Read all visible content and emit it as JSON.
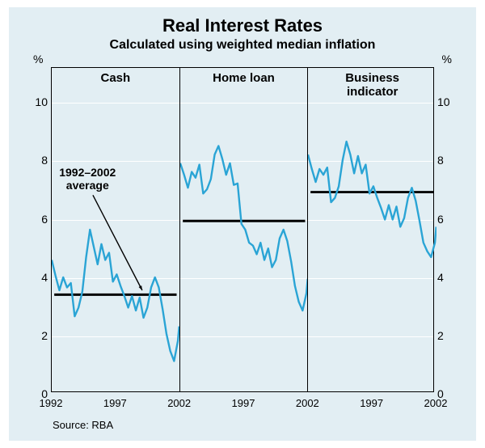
{
  "title": "Real Interest Rates",
  "subtitle": "Calculated using weighted median inflation",
  "source": "Source: RBA",
  "y_axis": {
    "unit": "%",
    "min": 0,
    "max": 11.2,
    "ticks": [
      0,
      2,
      4,
      6,
      8,
      10
    ]
  },
  "x_axis": {
    "start_year": 1992,
    "end_year": 2002
  },
  "colors": {
    "background": "#e2eef3",
    "grid": "#ffffff",
    "line": "#2aa4d5",
    "average": "#000000",
    "arrow": "#000000"
  },
  "line_width": 2.4,
  "average_line_width": 3,
  "panels": [
    {
      "title": "Cash",
      "average": 3.35,
      "x_ticks": [
        "1992",
        "1997",
        "2002"
      ],
      "annotation": {
        "text_lines": [
          "1992–2002",
          "average"
        ],
        "x_year": 1994.6,
        "y_val": 7.35,
        "arrow_to_year": 1999.1,
        "arrow_to_val": 3.5
      },
      "series": [
        [
          1992.0,
          4.55
        ],
        [
          1992.3,
          4.0
        ],
        [
          1992.6,
          3.5
        ],
        [
          1992.9,
          3.95
        ],
        [
          1993.2,
          3.6
        ],
        [
          1993.5,
          3.75
        ],
        [
          1993.8,
          2.6
        ],
        [
          1994.1,
          2.9
        ],
        [
          1994.4,
          3.45
        ],
        [
          1994.7,
          4.65
        ],
        [
          1995.0,
          5.6
        ],
        [
          1995.3,
          5.0
        ],
        [
          1995.6,
          4.4
        ],
        [
          1995.9,
          5.1
        ],
        [
          1996.2,
          4.55
        ],
        [
          1996.5,
          4.8
        ],
        [
          1996.8,
          3.8
        ],
        [
          1997.1,
          4.05
        ],
        [
          1997.4,
          3.65
        ],
        [
          1997.7,
          3.3
        ],
        [
          1998.0,
          2.9
        ],
        [
          1998.3,
          3.3
        ],
        [
          1998.6,
          2.8
        ],
        [
          1998.9,
          3.25
        ],
        [
          1999.2,
          2.55
        ],
        [
          1999.5,
          2.9
        ],
        [
          1999.8,
          3.6
        ],
        [
          2000.1,
          3.95
        ],
        [
          2000.4,
          3.6
        ],
        [
          2000.7,
          2.85
        ],
        [
          2001.0,
          2.0
        ],
        [
          2001.3,
          1.4
        ],
        [
          2001.6,
          1.05
        ],
        [
          2001.9,
          1.75
        ],
        [
          2002.0,
          2.25
        ]
      ]
    },
    {
      "title": "Home loan",
      "average": 5.9,
      "x_ticks": [
        "",
        "1997",
        "2002"
      ],
      "series": [
        [
          1992.0,
          7.9
        ],
        [
          1992.3,
          7.5
        ],
        [
          1992.6,
          7.05
        ],
        [
          1992.9,
          7.6
        ],
        [
          1993.2,
          7.4
        ],
        [
          1993.5,
          7.85
        ],
        [
          1993.8,
          6.85
        ],
        [
          1994.1,
          7.0
        ],
        [
          1994.4,
          7.35
        ],
        [
          1994.7,
          8.2
        ],
        [
          1995.0,
          8.5
        ],
        [
          1995.3,
          8.05
        ],
        [
          1995.6,
          7.5
        ],
        [
          1995.9,
          7.9
        ],
        [
          1996.2,
          7.15
        ],
        [
          1996.5,
          7.2
        ],
        [
          1996.8,
          5.8
        ],
        [
          1997.1,
          5.6
        ],
        [
          1997.4,
          5.15
        ],
        [
          1997.7,
          5.05
        ],
        [
          1998.0,
          4.75
        ],
        [
          1998.3,
          5.15
        ],
        [
          1998.6,
          4.55
        ],
        [
          1998.9,
          4.95
        ],
        [
          1999.2,
          4.3
        ],
        [
          1999.5,
          4.55
        ],
        [
          1999.8,
          5.3
        ],
        [
          2000.1,
          5.6
        ],
        [
          2000.4,
          5.2
        ],
        [
          2000.7,
          4.5
        ],
        [
          2001.0,
          3.65
        ],
        [
          2001.3,
          3.1
        ],
        [
          2001.6,
          2.8
        ],
        [
          2001.9,
          3.4
        ],
        [
          2002.0,
          3.9
        ]
      ]
    },
    {
      "title": "Business indicator",
      "average": 6.9,
      "x_ticks": [
        "",
        "1997",
        "2002"
      ],
      "series": [
        [
          1992.0,
          8.2
        ],
        [
          1992.3,
          7.7
        ],
        [
          1992.6,
          7.25
        ],
        [
          1992.9,
          7.7
        ],
        [
          1993.2,
          7.5
        ],
        [
          1993.5,
          7.75
        ],
        [
          1993.8,
          6.55
        ],
        [
          1994.1,
          6.7
        ],
        [
          1994.4,
          7.1
        ],
        [
          1994.7,
          8.0
        ],
        [
          1995.0,
          8.65
        ],
        [
          1995.3,
          8.2
        ],
        [
          1995.6,
          7.55
        ],
        [
          1995.9,
          8.15
        ],
        [
          1996.2,
          7.55
        ],
        [
          1996.5,
          7.85
        ],
        [
          1996.8,
          6.85
        ],
        [
          1997.1,
          7.1
        ],
        [
          1997.4,
          6.7
        ],
        [
          1997.7,
          6.35
        ],
        [
          1998.0,
          5.95
        ],
        [
          1998.3,
          6.45
        ],
        [
          1998.6,
          5.95
        ],
        [
          1998.9,
          6.4
        ],
        [
          1999.2,
          5.7
        ],
        [
          1999.5,
          6.0
        ],
        [
          1999.8,
          6.7
        ],
        [
          2000.1,
          7.05
        ],
        [
          2000.4,
          6.6
        ],
        [
          2000.7,
          5.9
        ],
        [
          2001.0,
          5.15
        ],
        [
          2001.3,
          4.85
        ],
        [
          2001.6,
          4.65
        ],
        [
          2001.9,
          5.15
        ],
        [
          2002.0,
          5.7
        ]
      ]
    }
  ]
}
